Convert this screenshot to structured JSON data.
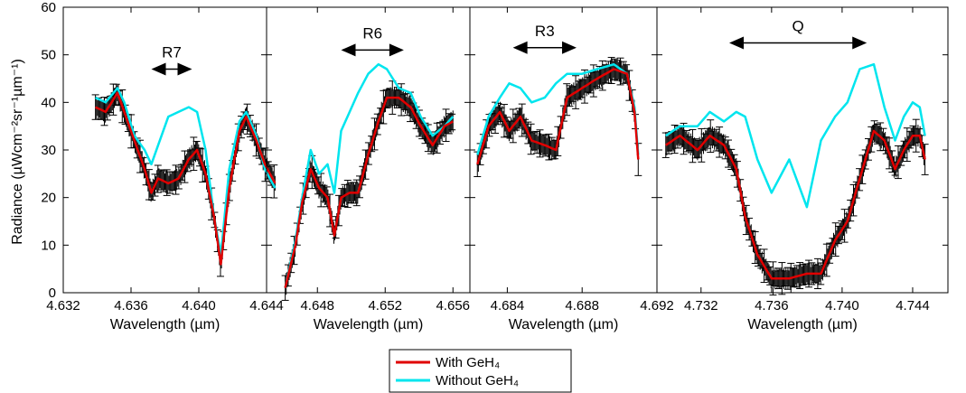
{
  "chart_data": {
    "type": "line",
    "ylabel": "Radiance (µWcm⁻²sr⁻¹µm⁻¹)",
    "ylim": [
      0,
      60
    ],
    "yticks": [
      "0",
      "10",
      "20",
      "30",
      "40",
      "50",
      "60"
    ],
    "legend": {
      "placement": "bottom-center",
      "entries": [
        {
          "label": "With GeH₄",
          "color": "#e00000"
        },
        {
          "label": "Without GeH₄",
          "color": "#00e5ee"
        }
      ]
    },
    "error_bar_color": "#000000",
    "panels": [
      {
        "xlabel": "Wavelength (µm)",
        "xlim": [
          4.632,
          4.644
        ],
        "xticks": [
          "4.632",
          "4.636",
          "4.640",
          "4.644"
        ],
        "band": {
          "label": "R7",
          "x_start": 4.6372,
          "x_end": 4.6396,
          "y": 47
        },
        "series": {
          "x": [
            4.6339,
            4.6345,
            4.6352,
            4.6356,
            4.6362,
            4.6368,
            4.6372,
            4.6376,
            4.6382,
            4.6388,
            4.6394,
            4.6399,
            4.6404,
            4.6409,
            4.6413,
            4.6418,
            4.6424,
            4.6428,
            4.6434,
            4.6439,
            4.6445
          ],
          "with": [
            39,
            38,
            42,
            38,
            32,
            26,
            21,
            24,
            23,
            24,
            28,
            30,
            25,
            16,
            6,
            22,
            34,
            37,
            32,
            27,
            23
          ],
          "without": [
            41,
            40,
            43,
            40,
            33,
            30,
            27,
            31,
            37,
            38,
            39,
            38,
            30,
            16,
            8,
            26,
            36,
            38,
            33,
            26,
            22
          ]
        }
      },
      {
        "xlabel": "Wavelength (µm)",
        "xlim": [
          4.645,
          4.657
        ],
        "xticks": [
          "4.648",
          "4.652",
          "4.656"
        ],
        "band": {
          "label": "R6",
          "x_start": 4.6494,
          "x_end": 4.6531,
          "y": 51
        },
        "series": {
          "x": [
            4.6461,
            4.6467,
            4.6471,
            4.6476,
            4.6481,
            4.6486,
            4.649,
            4.6494,
            4.6499,
            4.6504,
            4.651,
            4.6516,
            4.6521,
            4.6528,
            4.6535,
            4.6541,
            4.6548,
            4.6555,
            4.656
          ],
          "with": [
            1,
            10,
            19,
            26,
            22,
            20,
            12,
            20,
            21,
            21,
            29,
            36,
            41,
            41,
            39,
            35,
            31,
            35,
            36
          ],
          "without": [
            1,
            11,
            20,
            30,
            25,
            27,
            21,
            34,
            38,
            42,
            46,
            48,
            47,
            43,
            42,
            37,
            33,
            35,
            37
          ]
        }
      },
      {
        "xlabel": "Wavelength (µm)",
        "xlim": [
          4.682,
          4.692
        ],
        "xticks": [
          "4.684",
          "4.688",
          "4.692"
        ],
        "band": {
          "label": "R3",
          "x_start": 4.6843,
          "x_end": 4.6877,
          "y": 51.5
        },
        "series": {
          "x": [
            4.6824,
            4.683,
            4.6836,
            4.6841,
            4.6847,
            4.6853,
            4.686,
            4.6866,
            4.6872,
            4.688,
            4.6888,
            4.6897,
            4.6904,
            4.6908,
            4.691
          ],
          "with": [
            27,
            35,
            38,
            34,
            37,
            32,
            31,
            30,
            41,
            43,
            45,
            47,
            46,
            38,
            28
          ],
          "without": [
            29,
            37,
            41,
            44,
            43,
            40,
            41,
            44,
            46,
            46,
            47,
            48,
            46,
            39,
            29
          ]
        }
      },
      {
        "xlabel": "Wavelength (µm)",
        "xlim": [
          4.7295,
          4.746
        ],
        "xticks": [
          "4.732",
          "4.736",
          "4.740",
          "4.744"
        ],
        "band": {
          "label": "Q",
          "x_start": 4.7336,
          "x_end": 4.7414,
          "y": 52.5
        },
        "series": {
          "x": [
            4.73,
            4.7308,
            4.7318,
            4.7325,
            4.7333,
            4.734,
            4.7345,
            4.7352,
            4.736,
            4.737,
            4.738,
            4.7388,
            4.7396,
            4.7403,
            4.741,
            4.7418,
            4.7424,
            4.743,
            4.7435,
            4.744,
            4.7444,
            4.7447
          ],
          "with": [
            31,
            33,
            30,
            33,
            31,
            26,
            16,
            8,
            3,
            3,
            4,
            4,
            11,
            15,
            24,
            34,
            32,
            26,
            30,
            33,
            33,
            28
          ],
          "without": [
            33,
            35,
            35,
            38,
            36,
            38,
            37,
            28,
            21,
            28,
            18,
            32,
            37,
            40,
            47,
            48,
            39,
            32,
            37,
            40,
            39,
            33
          ]
        }
      }
    ]
  }
}
